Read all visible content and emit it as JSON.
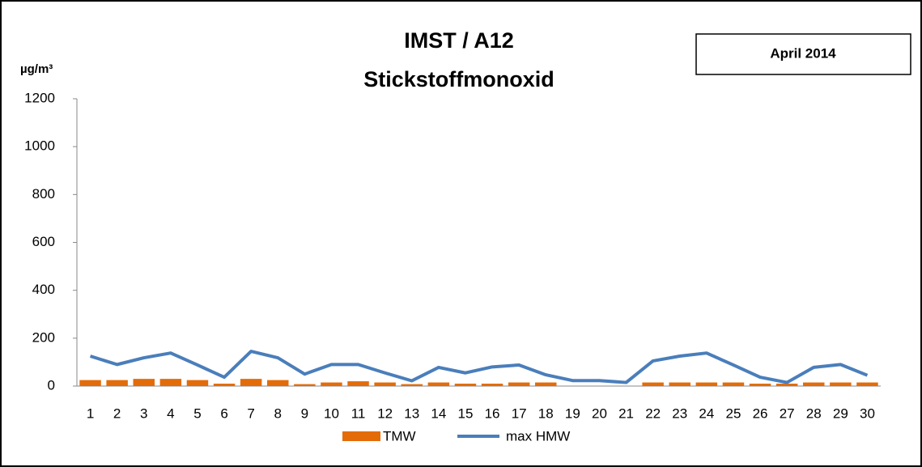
{
  "chart_data": {
    "type": "bar",
    "title": "IMST / A12",
    "subtitle": "Stickstoffmonoxid",
    "y_label": "µg/m³",
    "annotation": "April 2014",
    "categories": [
      "1",
      "2",
      "3",
      "4",
      "5",
      "6",
      "7",
      "8",
      "9",
      "10",
      "11",
      "12",
      "13",
      "14",
      "15",
      "16",
      "17",
      "18",
      "19",
      "20",
      "21",
      "22",
      "23",
      "24",
      "25",
      "26",
      "27",
      "28",
      "29",
      "30"
    ],
    "series": [
      {
        "name": "TMW",
        "type": "bar",
        "color": "#e36c09",
        "values": [
          25,
          25,
          30,
          30,
          25,
          10,
          30,
          25,
          8,
          15,
          20,
          15,
          8,
          15,
          10,
          10,
          15,
          15,
          null,
          null,
          null,
          15,
          15,
          15,
          15,
          10,
          10,
          15,
          15,
          15
        ]
      },
      {
        "name": "max HMW",
        "type": "line",
        "color": "#4a7ebb",
        "values": [
          125,
          90,
          118,
          138,
          88,
          37,
          145,
          118,
          50,
          90,
          90,
          55,
          22,
          78,
          55,
          80,
          88,
          47,
          23,
          23,
          15,
          105,
          125,
          138,
          88,
          37,
          15,
          78,
          90,
          45
        ]
      }
    ],
    "ylim": [
      0,
      1200
    ],
    "yticks": [
      0,
      200,
      400,
      600,
      800,
      1000,
      1200
    ],
    "legend": "bottom"
  }
}
